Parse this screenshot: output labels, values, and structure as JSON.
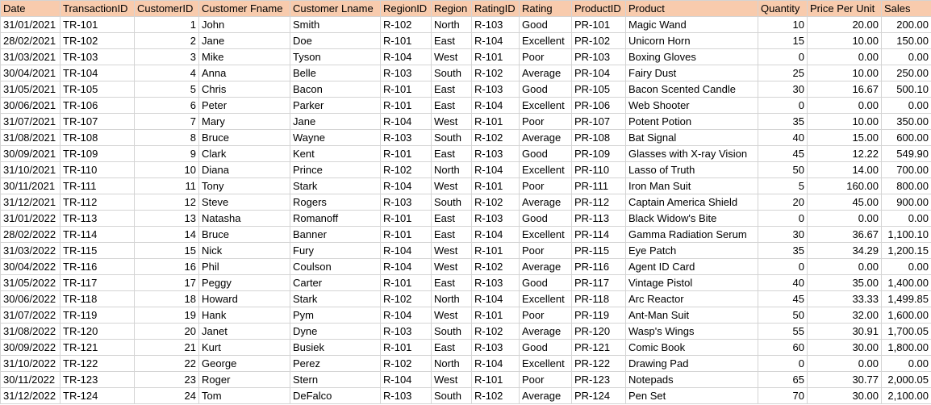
{
  "sheet": {
    "header_fill": "#f8cbad",
    "columns": [
      "Date",
      "TransactionID",
      "CustomerID",
      "Customer Fname",
      "Customer Lname",
      "RegionID",
      "Region",
      "RatingID",
      "Rating",
      "ProductID",
      "Product",
      "Quantity",
      "Price Per Unit",
      "Sales"
    ],
    "rows": [
      [
        "31/01/2021",
        "TR-101",
        "1",
        "John",
        "Smith",
        "R-102",
        "North",
        "R-103",
        "Good",
        "PR-101",
        "Magic Wand",
        "10",
        "20.00",
        "200.00"
      ],
      [
        "28/02/2021",
        "TR-102",
        "2",
        "Jane",
        "Doe",
        "R-101",
        "East",
        "R-104",
        "Excellent",
        "PR-102",
        "Unicorn Horn",
        "15",
        "10.00",
        "150.00"
      ],
      [
        "31/03/2021",
        "TR-103",
        "3",
        "Mike",
        "Tyson",
        "R-104",
        "West",
        "R-101",
        "Poor",
        "PR-103",
        "Boxing Gloves",
        "0",
        "0.00",
        "0.00"
      ],
      [
        "30/04/2021",
        "TR-104",
        "4",
        "Anna",
        "Belle",
        "R-103",
        "South",
        "R-102",
        "Average",
        "PR-104",
        "Fairy Dust",
        "25",
        "10.00",
        "250.00"
      ],
      [
        "31/05/2021",
        "TR-105",
        "5",
        "Chris",
        "Bacon",
        "R-101",
        "East",
        "R-103",
        "Good",
        "PR-105",
        "Bacon Scented Candle",
        "30",
        "16.67",
        "500.10"
      ],
      [
        "30/06/2021",
        "TR-106",
        "6",
        "Peter",
        "Parker",
        "R-101",
        "East",
        "R-104",
        "Excellent",
        "PR-106",
        "Web Shooter",
        "0",
        "0.00",
        "0.00"
      ],
      [
        "31/07/2021",
        "TR-107",
        "7",
        "Mary",
        "Jane",
        "R-104",
        "West",
        "R-101",
        "Poor",
        "PR-107",
        "Potent Potion",
        "35",
        "10.00",
        "350.00"
      ],
      [
        "31/08/2021",
        "TR-108",
        "8",
        "Bruce",
        "Wayne",
        "R-103",
        "South",
        "R-102",
        "Average",
        "PR-108",
        "Bat Signal",
        "40",
        "15.00",
        "600.00"
      ],
      [
        "30/09/2021",
        "TR-109",
        "9",
        "Clark",
        "Kent",
        "R-101",
        "East",
        "R-103",
        "Good",
        "PR-109",
        "Glasses with X-ray Vision",
        "45",
        "12.22",
        "549.90"
      ],
      [
        "31/10/2021",
        "TR-110",
        "10",
        "Diana",
        "Prince",
        "R-102",
        "North",
        "R-104",
        "Excellent",
        "PR-110",
        "Lasso of Truth",
        "50",
        "14.00",
        "700.00"
      ],
      [
        "30/11/2021",
        "TR-111",
        "11",
        "Tony",
        "Stark",
        "R-104",
        "West",
        "R-101",
        "Poor",
        "PR-111",
        "Iron Man Suit",
        "5",
        "160.00",
        "800.00"
      ],
      [
        "31/12/2021",
        "TR-112",
        "12",
        "Steve",
        "Rogers",
        "R-103",
        "South",
        "R-102",
        "Average",
        "PR-112",
        "Captain America Shield",
        "20",
        "45.00",
        "900.00"
      ],
      [
        "31/01/2022",
        "TR-113",
        "13",
        "Natasha",
        "Romanoff",
        "R-101",
        "East",
        "R-103",
        "Good",
        "PR-113",
        "Black Widow's Bite",
        "0",
        "0.00",
        "0.00"
      ],
      [
        "28/02/2022",
        "TR-114",
        "14",
        "Bruce",
        "Banner",
        "R-101",
        "East",
        "R-104",
        "Excellent",
        "PR-114",
        "Gamma Radiation Serum",
        "30",
        "36.67",
        "1,100.10"
      ],
      [
        "31/03/2022",
        "TR-115",
        "15",
        "Nick",
        "Fury",
        "R-104",
        "West",
        "R-101",
        "Poor",
        "PR-115",
        "Eye Patch",
        "35",
        "34.29",
        "1,200.15"
      ],
      [
        "30/04/2022",
        "TR-116",
        "16",
        "Phil",
        "Coulson",
        "R-104",
        "West",
        "R-102",
        "Average",
        "PR-116",
        "Agent ID Card",
        "0",
        "0.00",
        "0.00"
      ],
      [
        "31/05/2022",
        "TR-117",
        "17",
        "Peggy",
        "Carter",
        "R-101",
        "East",
        "R-103",
        "Good",
        "PR-117",
        "Vintage Pistol",
        "40",
        "35.00",
        "1,400.00"
      ],
      [
        "30/06/2022",
        "TR-118",
        "18",
        "Howard",
        "Stark",
        "R-102",
        "North",
        "R-104",
        "Excellent",
        "PR-118",
        "Arc Reactor",
        "45",
        "33.33",
        "1,499.85"
      ],
      [
        "31/07/2022",
        "TR-119",
        "19",
        "Hank",
        "Pym",
        "R-104",
        "West",
        "R-101",
        "Poor",
        "PR-119",
        "Ant-Man Suit",
        "50",
        "32.00",
        "1,600.00"
      ],
      [
        "31/08/2022",
        "TR-120",
        "20",
        "Janet",
        "Dyne",
        "R-103",
        "South",
        "R-102",
        "Average",
        "PR-120",
        "Wasp's Wings",
        "55",
        "30.91",
        "1,700.05"
      ],
      [
        "30/09/2022",
        "TR-121",
        "21",
        "Kurt",
        "Busiek",
        "R-101",
        "East",
        "R-103",
        "Good",
        "PR-121",
        "Comic Book",
        "60",
        "30.00",
        "1,800.00"
      ],
      [
        "31/10/2022",
        "TR-122",
        "22",
        "George",
        "Perez",
        "R-102",
        "North",
        "R-104",
        "Excellent",
        "PR-122",
        "Drawing Pad",
        "0",
        "0.00",
        "0.00"
      ],
      [
        "30/11/2022",
        "TR-123",
        "23",
        "Roger",
        "Stern",
        "R-104",
        "West",
        "R-101",
        "Poor",
        "PR-123",
        "Notepads",
        "65",
        "30.77",
        "2,000.05"
      ],
      [
        "31/12/2022",
        "TR-124",
        "24",
        "Tom",
        "DeFalco",
        "R-103",
        "South",
        "R-102",
        "Average",
        "PR-124",
        "Pen Set",
        "70",
        "30.00",
        "2,100.00"
      ]
    ]
  }
}
